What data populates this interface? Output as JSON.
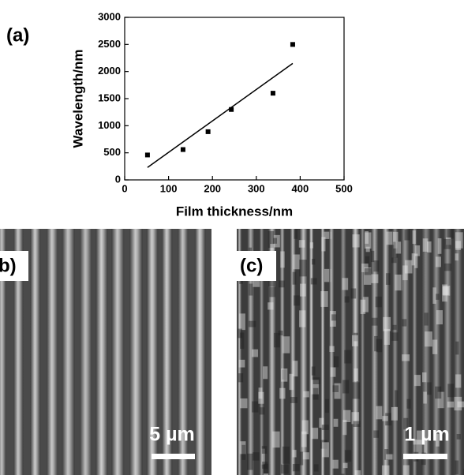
{
  "chart_data": {
    "type": "scatter",
    "panel_label": "(a)",
    "x_label": "Film thickness/nm",
    "y_label": "Wavelength/nm",
    "x": [
      52,
      133,
      190,
      243,
      338,
      383
    ],
    "series": [
      {
        "color": "#000000",
        "values": [
          460,
          560,
          890,
          1300,
          1600,
          2500
        ]
      }
    ],
    "fit": {
      "color": "#000000",
      "x": [
        52,
        383
      ],
      "values": [
        230,
        2150
      ]
    },
    "xlim": [
      0,
      500
    ],
    "xticks": [
      0,
      100,
      200,
      300,
      400,
      500
    ],
    "ylim": [
      0,
      3000
    ],
    "yticks": [
      0,
      500,
      1000,
      1500,
      2000,
      2500,
      3000
    ]
  },
  "panels": [
    {
      "label": "b)",
      "scale_bar": "5 µm"
    },
    {
      "label": "(c)",
      "scale_bar": "1 µm"
    }
  ]
}
